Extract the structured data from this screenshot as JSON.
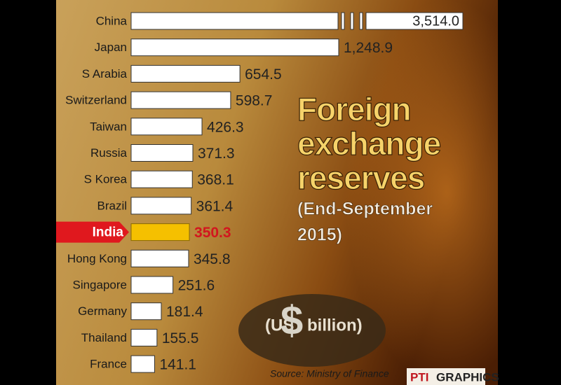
{
  "chart_data": {
    "type": "bar",
    "title_lines": [
      "Foreign",
      "exchange",
      "reserves"
    ],
    "subtitle_lines": [
      "(End-September",
      "2015)"
    ],
    "unit_prefix": "(US",
    "unit_symbol": "$",
    "unit_suffix": "billion)",
    "source": "Source: Ministry of Finance",
    "credit": [
      "PTI",
      "GRAPHICS"
    ],
    "categories": [
      "China",
      "Japan",
      "S Arabia",
      "Switzerland",
      "Taiwan",
      "Russia",
      "S Korea",
      "Brazil",
      "India",
      "Hong Kong",
      "Singapore",
      "Germany",
      "Thailand",
      "France"
    ],
    "values": [
      3514.0,
      1248.9,
      654.5,
      598.7,
      426.3,
      371.3,
      368.1,
      361.4,
      350.3,
      345.8,
      251.6,
      181.4,
      155.5,
      141.1
    ],
    "value_labels": [
      "3,514.0",
      "1,248.9",
      "654.5",
      "598.7",
      "426.3",
      "371.3",
      "368.1",
      "361.4",
      "350.3",
      "345.8",
      "251.6",
      "181.4",
      "155.5",
      "141.1"
    ],
    "colors": [
      "#ffffff",
      "#ffffff",
      "#ffffff",
      "#ffffff",
      "#ffffff",
      "#ffffff",
      "#ffffff",
      "#ffffff",
      "#f5c000",
      "#ffffff",
      "#ffffff",
      "#ffffff",
      "#ffffff",
      "#ffffff"
    ]
  }
}
